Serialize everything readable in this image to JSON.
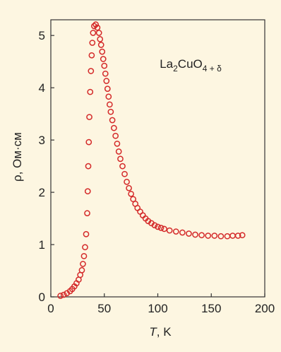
{
  "chart_data": {
    "type": "scatter",
    "annotation": {
      "base": "La",
      "sub1": "2",
      "mid": "CuO",
      "sub2": "4 + δ"
    },
    "xlabel": {
      "var": "T",
      "unit": ", K"
    },
    "ylabel": "ρ, Ом·см",
    "xlim": [
      0,
      200
    ],
    "ylim": [
      0,
      5.3
    ],
    "xticks": [
      "0",
      "50",
      "100",
      "150",
      "200"
    ],
    "xtick_values": [
      0,
      50,
      100,
      150,
      200
    ],
    "yticks": [
      "0",
      "1",
      "2",
      "3",
      "4",
      "5"
    ],
    "ytick_values": [
      0,
      1,
      2,
      3,
      4,
      5
    ],
    "grid": false,
    "marker_color": "#d42a2a",
    "series": [
      {
        "points": [
          [
            9,
            0.02
          ],
          [
            12,
            0.04
          ],
          [
            15,
            0.07
          ],
          [
            18,
            0.11
          ],
          [
            20,
            0.15
          ],
          [
            22,
            0.2
          ],
          [
            24,
            0.26
          ],
          [
            26,
            0.33
          ],
          [
            27.5,
            0.42
          ],
          [
            29,
            0.51
          ],
          [
            30,
            0.63
          ],
          [
            31,
            0.78
          ],
          [
            32,
            0.95
          ],
          [
            33,
            1.2
          ],
          [
            34,
            1.6
          ],
          [
            34.5,
            2.02
          ],
          [
            35,
            2.5
          ],
          [
            35.5,
            2.96
          ],
          [
            36,
            3.44
          ],
          [
            36.8,
            3.92
          ],
          [
            37.5,
            4.32
          ],
          [
            38.2,
            4.62
          ],
          [
            38.8,
            4.86
          ],
          [
            39.5,
            5.05
          ],
          [
            40.5,
            5.18
          ],
          [
            42,
            5.21
          ],
          [
            43.5,
            5.15
          ],
          [
            45,
            5.05
          ],
          [
            46,
            4.93
          ],
          [
            47,
            4.82
          ],
          [
            48,
            4.69
          ],
          [
            49,
            4.55
          ],
          [
            50,
            4.42
          ],
          [
            51,
            4.27
          ],
          [
            52,
            4.13
          ],
          [
            53,
            3.98
          ],
          [
            54,
            3.83
          ],
          [
            55,
            3.68
          ],
          [
            56,
            3.54
          ],
          [
            57.5,
            3.38
          ],
          [
            59,
            3.23
          ],
          [
            60.5,
            3.08
          ],
          [
            62,
            2.93
          ],
          [
            63.5,
            2.78
          ],
          [
            65,
            2.64
          ],
          [
            67,
            2.5
          ],
          [
            69,
            2.35
          ],
          [
            71,
            2.2
          ],
          [
            73,
            2.08
          ],
          [
            75,
            1.97
          ],
          [
            77,
            1.87
          ],
          [
            79,
            1.78
          ],
          [
            81,
            1.7
          ],
          [
            83.5,
            1.63
          ],
          [
            86,
            1.56
          ],
          [
            88.5,
            1.5
          ],
          [
            91,
            1.45
          ],
          [
            94,
            1.41
          ],
          [
            97,
            1.37
          ],
          [
            100,
            1.34
          ],
          [
            103,
            1.32
          ],
          [
            106,
            1.3
          ],
          [
            111,
            1.27
          ],
          [
            117,
            1.25
          ],
          [
            123,
            1.23
          ],
          [
            129,
            1.21
          ],
          [
            135,
            1.19
          ],
          [
            141,
            1.18
          ],
          [
            147,
            1.17
          ],
          [
            153,
            1.17
          ],
          [
            159,
            1.16
          ],
          [
            165,
            1.16
          ],
          [
            170,
            1.17
          ],
          [
            175,
            1.17
          ],
          [
            179,
            1.18
          ]
        ]
      }
    ]
  }
}
